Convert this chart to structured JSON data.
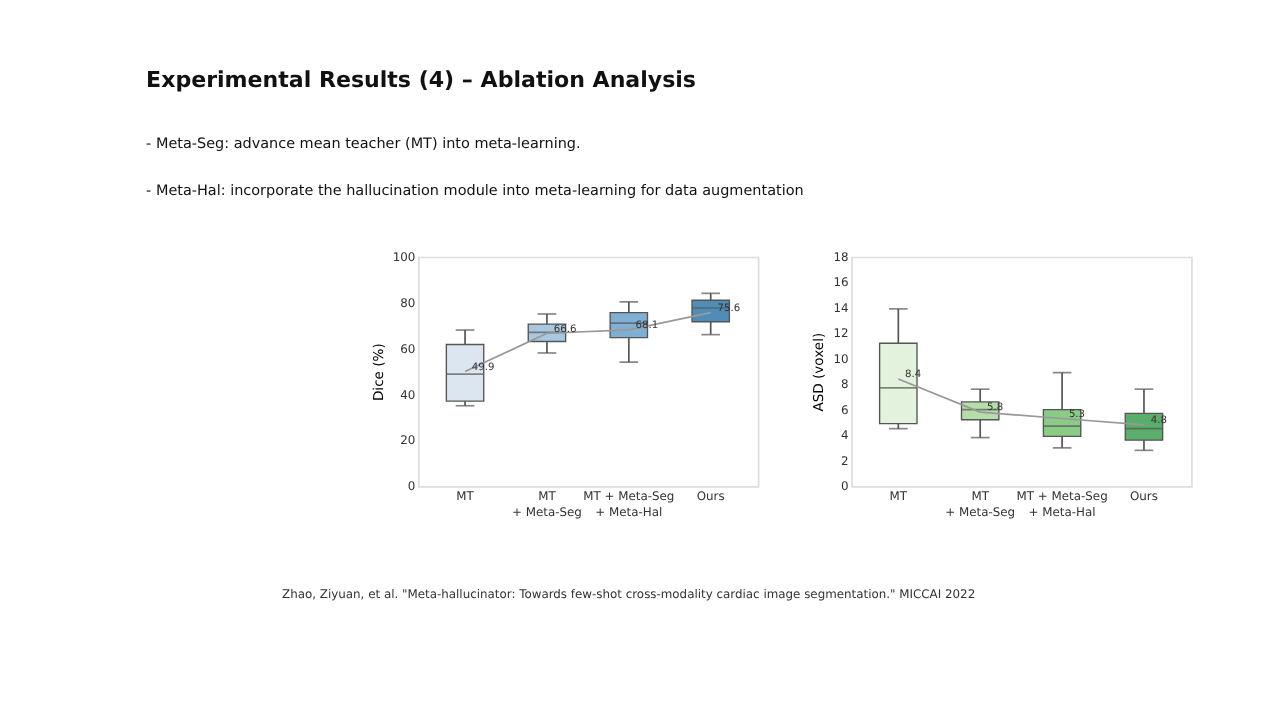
{
  "chart_data": [
    {
      "type": "box",
      "title": "Experimental Results (4) – Ablation Analysis",
      "subtitle": [
        "-   Meta-Seg: advance mean teacher (MT) into meta-learning.",
        "-   Meta-Hal: incorporate the hallucination module into meta-learning for data augmentation"
      ],
      "annotations": [
        "Zhao, Ziyuan, et al. \"Meta-hallucinator: Towards few-shot cross-modality cardiac image segmentation.\" MICCAI 2022"
      ],
      "ylabel": "Dice (%)",
      "categories": [
        "MT",
        "MT\n+ Meta-Seg",
        "MT + Meta-Seg\n+ Meta-Hal",
        "Ours"
      ],
      "ylim": [
        0,
        100
      ],
      "yticks": [
        0,
        20,
        40,
        60,
        80,
        100
      ],
      "grid": false,
      "boxes": [
        {
          "low": 35,
          "q1": 37,
          "median": 48.8,
          "q3": 61.7,
          "high": 68
        },
        {
          "low": 58,
          "q1": 63,
          "median": 67,
          "q3": 70.6,
          "high": 75
        },
        {
          "low": 54,
          "q1": 64.7,
          "median": 71,
          "q3": 75.6,
          "high": 80.3
        },
        {
          "low": 66,
          "q1": 71.6,
          "median": 77.6,
          "q3": 81,
          "high": 84
        }
      ],
      "colors": [
        "#dce6f0",
        "#a9c8e0",
        "#7fb0d4",
        "#4f8db8"
      ],
      "series": [
        {
          "type": "line",
          "color": "#999999",
          "values": [
            49.9,
            66.6,
            68.1,
            75.6
          ]
        }
      ],
      "data_labels": true
    },
    {
      "type": "box",
      "ylabel": "ASD (voxel)",
      "categories": [
        "MT",
        "MT\n+ Meta-Seg",
        "MT + Meta-Seg\n+ Meta-Hal",
        "Ours"
      ],
      "ylim": [
        0,
        18
      ],
      "yticks": [
        0,
        2,
        4,
        6,
        8,
        10,
        12,
        14,
        16,
        18
      ],
      "grid": false,
      "boxes": [
        {
          "low": 4.5,
          "q1": 4.9,
          "median": 7.7,
          "q3": 11.2,
          "high": 13.9
        },
        {
          "low": 3.8,
          "q1": 5.2,
          "median": 6.0,
          "q3": 6.6,
          "high": 7.6
        },
        {
          "low": 3.0,
          "q1": 3.9,
          "median": 4.7,
          "q3": 6.0,
          "high": 8.9
        },
        {
          "low": 2.8,
          "q1": 3.6,
          "median": 4.5,
          "q3": 5.7,
          "high": 7.6
        }
      ],
      "colors": [
        "#e3f2dc",
        "#b5dfa8",
        "#8acb86",
        "#5aad6a"
      ],
      "series": [
        {
          "type": "line",
          "color": "#999999",
          "values": [
            8.4,
            5.8,
            5.3,
            4.8
          ]
        }
      ],
      "data_labels": true
    }
  ]
}
